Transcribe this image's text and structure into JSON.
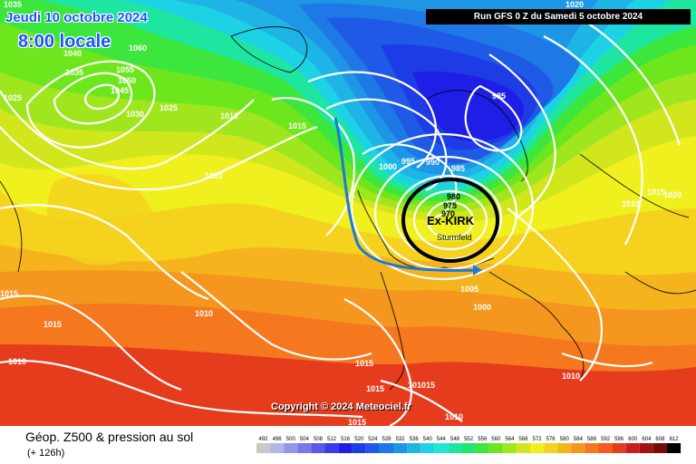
{
  "header": {
    "date": "Jeudi 10 octobre 2024",
    "time": "8:00 locale",
    "run": "Run GFS 0 Z du Samedi 5 octobre 2024"
  },
  "map": {
    "storm_name": "Ex-KIRK",
    "city_label": "Sturmfeld",
    "storm_center_values": [
      "980",
      "975",
      "970"
    ],
    "isobar_labels": [
      "1035",
      "1040",
      "1035",
      "1025",
      "1060",
      "1055",
      "1050",
      "1045",
      "1030",
      "1025",
      "1010",
      "1015",
      "1020",
      "985",
      "1000",
      "995",
      "990",
      "985",
      "1020",
      "1015",
      "1020",
      "1010",
      "1015",
      "1015",
      "1005",
      "1000",
      "1015",
      "1010",
      "1010",
      "1015",
      "1010",
      "101015",
      "1010",
      "1015",
      "1015"
    ],
    "colors": {
      "trough": "#1e1ee6",
      "ridge": "#e63b1e",
      "storm_circle": "#000000",
      "track": "#1a7ad6"
    }
  },
  "copyright": "Copyright © 2024 Meteociel.fr",
  "footer": {
    "title": "Géop. Z500 & pression au sol",
    "subtitle": "(+ 126h)"
  },
  "legend": {
    "labels": [
      "492",
      "496",
      "500",
      "504",
      "508",
      "512",
      "516",
      "520",
      "524",
      "528",
      "532",
      "536",
      "540",
      "544",
      "548",
      "552",
      "556",
      "560",
      "564",
      "568",
      "572",
      "576",
      "580",
      "584",
      "588",
      "592",
      "596",
      "600",
      "604",
      "608",
      "612"
    ],
    "colors": [
      "#c8c8c8",
      "#b4b4e6",
      "#9696e6",
      "#7878e6",
      "#5a5ae6",
      "#3c3ce6",
      "#1e1ee6",
      "#1e3ce6",
      "#1e5ae6",
      "#1e78e6",
      "#1e96e6",
      "#1eb4e6",
      "#1ed2e6",
      "#1ee6d2",
      "#1ee6a0",
      "#1ee66e",
      "#3ce63c",
      "#6ee61e",
      "#a0e61e",
      "#d2e61e",
      "#f0f01e",
      "#f5d21e",
      "#f5b41e",
      "#f5961e",
      "#f5781e",
      "#f55a1e",
      "#e63c1e",
      "#c81e1e",
      "#a01414",
      "#780a0a",
      "#000000"
    ]
  }
}
